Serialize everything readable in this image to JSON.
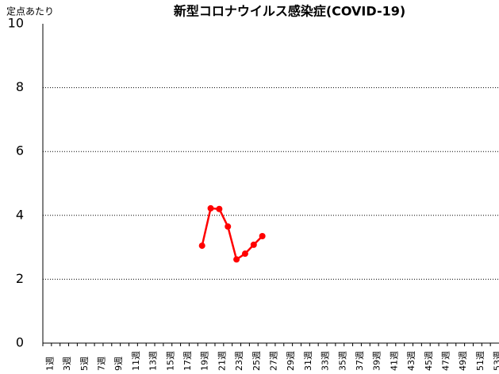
{
  "chart_data": {
    "type": "line",
    "title": "新型コロナウイルス感染症(COVID-19)",
    "y_label": "定点あたり",
    "categories": [
      "1週",
      null,
      "3週",
      null,
      "5週",
      null,
      "7週",
      null,
      "9週",
      null,
      "11週",
      null,
      "13週",
      null,
      "15週",
      null,
      "17週",
      null,
      "19週",
      null,
      "21週",
      null,
      "23週",
      null,
      "25週",
      null,
      "27週",
      null,
      "29週",
      null,
      "31週",
      null,
      "33週",
      null,
      "35週",
      null,
      "37週",
      null,
      "39週",
      null,
      "41週",
      null,
      "43週",
      null,
      "45週",
      null,
      "47週",
      null,
      "49週",
      null,
      "51週",
      null,
      "53週"
    ],
    "series": [
      {
        "name": "定点あたり",
        "color": "#ff0000",
        "values": [
          null,
          null,
          null,
          null,
          null,
          null,
          null,
          null,
          null,
          null,
          null,
          null,
          null,
          null,
          null,
          null,
          null,
          null,
          3.05,
          4.22,
          4.2,
          3.65,
          2.62,
          2.8,
          3.08,
          3.35,
          null,
          null,
          null,
          null,
          null,
          null,
          null,
          null,
          null,
          null,
          null,
          null,
          null,
          null,
          null,
          null,
          null,
          null,
          null,
          null,
          null,
          null,
          null,
          null,
          null,
          null,
          null
        ]
      }
    ],
    "ylim": [
      0,
      10
    ],
    "yticks": [
      0,
      2,
      4,
      6,
      8,
      10
    ],
    "grid": true
  }
}
